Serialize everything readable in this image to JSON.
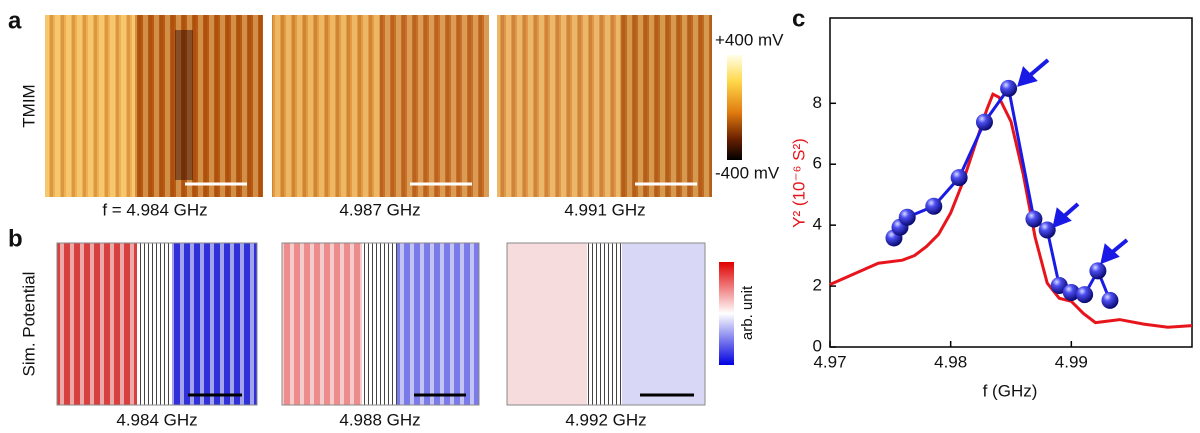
{
  "panel_labels": [
    "a",
    "b",
    "c"
  ],
  "panel_a": {
    "row_label": "TMIM",
    "captions": [
      "f = 4.984 GHz",
      "4.987 GHz",
      "4.991 GHz"
    ],
    "colorbar": {
      "max_label": "+400 mV",
      "min_label": "-400 mV"
    }
  },
  "panel_b": {
    "row_label": "Sim. Potential",
    "captions": [
      "4.984 GHz",
      "4.988 GHz",
      "4.992 GHz"
    ],
    "colorbar": {
      "label": "arb. unit"
    }
  },
  "chart_data": {
    "type": "line",
    "x_label": "f (GHz)",
    "y_label": "Y² (10⁻⁶ S²)",
    "xlim": [
      4.97,
      5.0
    ],
    "ylim": [
      0,
      10.8
    ],
    "xticks": [
      4.97,
      4.98,
      4.99
    ],
    "yticks": [
      0,
      2,
      4,
      6,
      8
    ],
    "series": [
      {
        "color": "#e8141c",
        "markers": false,
        "x": [
          4.97,
          4.972,
          4.974,
          4.976,
          4.977,
          4.978,
          4.979,
          4.98,
          4.981,
          4.982,
          4.983,
          4.9835,
          4.984,
          4.985,
          4.986,
          4.987,
          4.988,
          4.989,
          4.99,
          4.991,
          4.992,
          4.994,
          4.996,
          4.998,
          5.0
        ],
        "values": [
          2.05,
          2.4,
          2.75,
          2.85,
          3.0,
          3.3,
          3.7,
          4.4,
          5.4,
          6.6,
          7.8,
          8.3,
          8.2,
          7.4,
          5.7,
          3.6,
          2.1,
          1.6,
          1.5,
          1.1,
          0.8,
          0.9,
          0.75,
          0.65,
          0.7
        ]
      },
      {
        "color": "#1a1ae6",
        "markers": true,
        "x": [
          4.9753,
          4.9758,
          4.9764,
          4.9786,
          4.9807,
          4.9828,
          4.9848,
          4.9869,
          4.988,
          4.989,
          4.99,
          4.9911,
          4.9922,
          4.9932
        ],
        "values": [
          3.58,
          3.93,
          4.26,
          4.62,
          5.56,
          7.38,
          8.49,
          4.2,
          3.84,
          2.02,
          1.79,
          1.72,
          2.5,
          1.53
        ]
      }
    ]
  }
}
